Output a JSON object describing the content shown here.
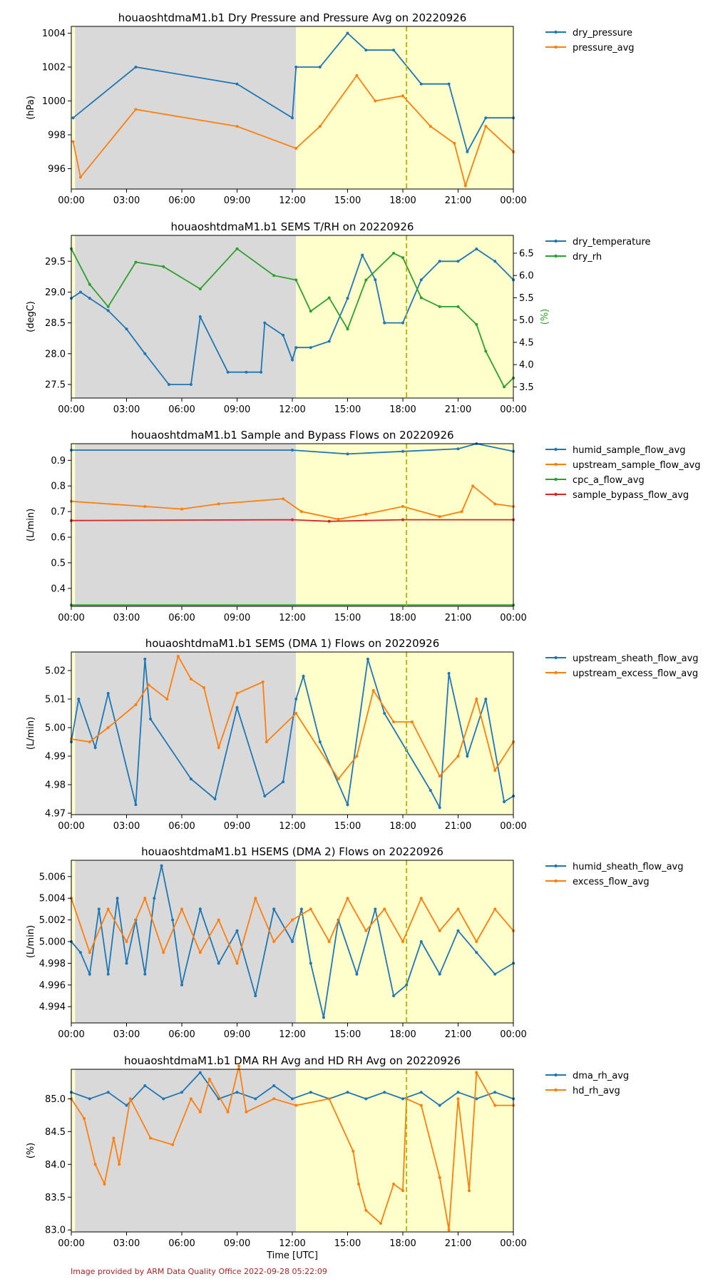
{
  "footer": "Image provided by ARM Data Quality Office 2022-09-28 05:22:09",
  "xaxis": {
    "ticks": [
      0,
      3,
      6,
      9,
      12,
      15,
      18,
      21,
      24
    ],
    "tick_labels": [
      "00:00",
      "03:00",
      "06:00",
      "09:00",
      "12:00",
      "15:00",
      "18:00",
      "21:00",
      "00:00"
    ],
    "range": [
      0,
      24
    ],
    "label": "Time [UTC]"
  },
  "colors": {
    "blue": "#1f77b4",
    "orange": "#ff7f0e",
    "green": "#2ca02c",
    "red": "#d62728",
    "night": "#d9d9d9",
    "day": "#ffffcc",
    "marker_line": "#b5b500",
    "footer": "#b22222"
  },
  "shading": {
    "night": [
      0.2,
      12.2
    ],
    "day": [
      12.2,
      24
    ],
    "edge_day": [
      0,
      0.2
    ],
    "dashed_line_hour": 18.2
  },
  "chart_data": [
    {
      "type": "line",
      "title": "houaoshtdmaM1.b1 Dry Pressure and Pressure Avg on 20220926",
      "ylabel": "(hPa)",
      "ylim": [
        994.8,
        1004.4
      ],
      "yticks": [
        996,
        998,
        1000,
        1002,
        1004
      ],
      "yticklabels": [
        "996",
        "998",
        "1000",
        "1002",
        "1004"
      ],
      "legend": "right-outside",
      "series": [
        {
          "name": "dry_pressure",
          "color": "#1f77b4",
          "x": [
            0.1,
            3.5,
            9.0,
            12.0,
            12.2,
            13.5,
            15.0,
            16.0,
            17.5,
            19.0,
            20.5,
            21.5,
            22.5,
            24.0
          ],
          "y": [
            999,
            1002,
            1001,
            999,
            1002,
            1002,
            1004,
            1003,
            1003,
            1001,
            1001,
            997,
            999,
            999
          ]
        },
        {
          "name": "pressure_avg",
          "color": "#ff7f0e",
          "x": [
            0.1,
            0.5,
            3.5,
            9.0,
            12.2,
            13.5,
            15.5,
            16.5,
            18.0,
            19.5,
            20.8,
            21.4,
            22.5,
            24.0
          ],
          "y": [
            997.6,
            995.5,
            999.5,
            998.5,
            997.2,
            998.5,
            1001.5,
            1000,
            1000.3,
            998.5,
            997.5,
            995,
            998.5,
            997
          ]
        }
      ]
    },
    {
      "type": "line",
      "title": "houaoshtdmaM1.b1 SEMS T/RH on 20220926",
      "ylabel": "(degC)",
      "ylabel_right": "(%)",
      "ylim": [
        27.28,
        29.92
      ],
      "yticks": [
        27.5,
        28.0,
        28.5,
        29.0,
        29.5
      ],
      "yticklabels": [
        "27.5",
        "28.0",
        "28.5",
        "29.0",
        "29.5"
      ],
      "ylim_right": [
        3.25,
        6.9
      ],
      "yticks_right": [
        3.5,
        4.0,
        4.5,
        5.0,
        5.5,
        6.0,
        6.5
      ],
      "yticklabels_right": [
        "3.5",
        "4.0",
        "4.5",
        "5.0",
        "5.5",
        "6.0",
        "6.5"
      ],
      "legend": "right-outside",
      "series": [
        {
          "name": "dry_temperature",
          "color": "#1f77b4",
          "axis": "left",
          "x": [
            0.0,
            0.5,
            1.0,
            2.0,
            3.0,
            4.0,
            5.3,
            6.5,
            7.0,
            8.5,
            9.5,
            10.3,
            10.5,
            11.5,
            12.0,
            12.2,
            13.0,
            14.0,
            15.0,
            15.8,
            16.5,
            17.0,
            18.0,
            19.0,
            20.0,
            21.0,
            22.0,
            23.0,
            24.0
          ],
          "y": [
            28.9,
            29.0,
            28.9,
            28.7,
            28.4,
            28.0,
            27.5,
            27.5,
            28.6,
            27.7,
            27.7,
            27.7,
            28.5,
            28.3,
            27.9,
            28.1,
            28.1,
            28.2,
            28.9,
            29.6,
            29.2,
            28.5,
            28.5,
            29.2,
            29.5,
            29.5,
            29.7,
            29.5,
            29.2
          ]
        },
        {
          "name": "dry_rh",
          "color": "#2ca02c",
          "axis": "right",
          "x": [
            0.0,
            1.0,
            2.0,
            3.5,
            5.0,
            7.0,
            9.0,
            11.0,
            12.2,
            13.0,
            14.0,
            15.0,
            16.0,
            17.5,
            18.0,
            19.0,
            20.0,
            21.0,
            22.0,
            22.5,
            23.5,
            24.0
          ],
          "y": [
            6.6,
            5.8,
            5.3,
            6.3,
            6.2,
            5.7,
            6.6,
            6.0,
            5.9,
            5.2,
            5.5,
            4.8,
            5.9,
            6.5,
            6.4,
            5.5,
            5.3,
            5.3,
            4.9,
            4.3,
            3.5,
            3.7
          ]
        }
      ]
    },
    {
      "type": "line",
      "title": "houaoshtdmaM1.b1 Sample and Bypass Flows on 20220926",
      "ylabel": "(L/min)",
      "ylim": [
        0.33,
        0.965
      ],
      "yticks": [
        0.4,
        0.5,
        0.6,
        0.7,
        0.8,
        0.9
      ],
      "yticklabels": [
        "0.4",
        "0.5",
        "0.6",
        "0.7",
        "0.8",
        "0.9"
      ],
      "legend": "right-outside",
      "series": [
        {
          "name": "humid_sample_flow_avg",
          "color": "#1f77b4",
          "x": [
            0,
            12,
            15,
            18,
            21,
            22,
            24
          ],
          "y": [
            0.94,
            0.94,
            0.925,
            0.935,
            0.945,
            0.965,
            0.935
          ]
        },
        {
          "name": "upstream_sample_flow_avg",
          "color": "#ff7f0e",
          "x": [
            0,
            4,
            6,
            8,
            11.5,
            12.5,
            14.5,
            16,
            18,
            20,
            21.2,
            21.8,
            23,
            24
          ],
          "y": [
            0.74,
            0.72,
            0.71,
            0.73,
            0.75,
            0.7,
            0.67,
            0.69,
            0.72,
            0.68,
            0.7,
            0.8,
            0.73,
            0.72
          ]
        },
        {
          "name": "cpc_a_flow_avg",
          "color": "#2ca02c",
          "x": [
            0,
            24
          ],
          "y": [
            0.335,
            0.335
          ]
        },
        {
          "name": "sample_bypass_flow_avg",
          "color": "#d62728",
          "x": [
            0,
            12,
            14,
            18,
            24
          ],
          "y": [
            0.665,
            0.668,
            0.662,
            0.668,
            0.668
          ]
        }
      ]
    },
    {
      "type": "line",
      "title": "houaoshtdmaM1.b1 SEMS (DMA 1) Flows on 20220926",
      "ylabel": "(L/min)",
      "ylim": [
        4.9695,
        5.0265
      ],
      "yticks": [
        4.97,
        4.98,
        4.99,
        5.0,
        5.01,
        5.02
      ],
      "yticklabels": [
        "4.97",
        "4.98",
        "4.99",
        "5.00",
        "5.01",
        "5.02"
      ],
      "legend": "right-outside",
      "series": [
        {
          "name": "upstream_sheath_flow_avg",
          "color": "#1f77b4",
          "x": [
            0.0,
            0.4,
            1.3,
            2.0,
            3.5,
            4.0,
            4.3,
            6.5,
            7.8,
            9.0,
            10.5,
            11.5,
            12.2,
            12.6,
            13.5,
            15.0,
            16.1,
            17.0,
            18.2,
            19.5,
            20.0,
            20.5,
            21.5,
            22.5,
            23.5,
            24.0
          ],
          "y": [
            4.995,
            5.01,
            4.993,
            5.012,
            4.973,
            5.024,
            5.003,
            4.982,
            4.975,
            5.007,
            4.976,
            4.981,
            5.01,
            5.018,
            4.995,
            4.973,
            5.024,
            5.005,
            4.992,
            4.978,
            4.972,
            5.019,
            4.99,
            5.01,
            4.974,
            4.976
          ]
        },
        {
          "name": "upstream_excess_flow_avg",
          "color": "#ff7f0e",
          "x": [
            0.0,
            1.0,
            2.0,
            3.5,
            4.2,
            5.2,
            5.8,
            6.5,
            7.2,
            8.0,
            9.0,
            10.4,
            10.6,
            12.2,
            14.5,
            15.5,
            16.4,
            17.5,
            18.5,
            20.0,
            21.0,
            22.0,
            23.0,
            24.0
          ],
          "y": [
            4.996,
            4.995,
            5.0,
            5.008,
            5.015,
            5.01,
            5.025,
            5.017,
            5.014,
            4.993,
            5.012,
            5.016,
            4.995,
            5.005,
            4.982,
            4.99,
            5.013,
            5.002,
            5.002,
            4.983,
            4.99,
            5.01,
            4.985,
            4.995
          ]
        }
      ]
    },
    {
      "type": "line",
      "title": "houaoshtdmaM1.b1 HSEMS (DMA 2) Flows on 20220926",
      "ylabel": "(L/min)",
      "ylim": [
        4.9925,
        5.0075
      ],
      "yticks": [
        4.994,
        4.996,
        4.998,
        5.0,
        5.002,
        5.004,
        5.006
      ],
      "yticklabels": [
        "4.994",
        "4.996",
        "4.998",
        "5.000",
        "5.002",
        "5.004",
        "5.006"
      ],
      "legend": "right-outside",
      "series": [
        {
          "name": "humid_sheath_flow_avg",
          "color": "#1f77b4",
          "x": [
            0.0,
            0.5,
            1.0,
            1.5,
            2.0,
            2.5,
            3.0,
            3.5,
            4.0,
            4.5,
            4.9,
            5.5,
            6.0,
            7.0,
            8.0,
            9.0,
            10.0,
            11.0,
            12.0,
            12.5,
            13.0,
            13.7,
            14.5,
            15.5,
            16.5,
            17.5,
            18.2,
            19.0,
            20.0,
            21.0,
            22.0,
            23.0,
            24.0
          ],
          "y": [
            5.0,
            4.999,
            4.997,
            5.003,
            4.997,
            5.004,
            4.998,
            5.002,
            4.997,
            5.004,
            5.007,
            5.002,
            4.996,
            5.003,
            4.998,
            5.001,
            4.995,
            5.003,
            5.0,
            5.003,
            4.998,
            4.993,
            5.002,
            4.997,
            5.003,
            4.995,
            4.996,
            5.0,
            4.997,
            5.001,
            4.999,
            4.997,
            4.998
          ]
        },
        {
          "name": "excess_flow_avg",
          "color": "#ff7f0e",
          "x": [
            0.0,
            1.0,
            2.0,
            3.0,
            4.0,
            5.0,
            6.0,
            7.0,
            8.0,
            9.0,
            10.0,
            11.0,
            12.0,
            13.0,
            14.0,
            15.0,
            16.0,
            17.0,
            18.0,
            19.0,
            20.0,
            21.0,
            22.0,
            23.0,
            24.0
          ],
          "y": [
            5.004,
            4.999,
            5.003,
            5.0,
            5.004,
            4.999,
            5.003,
            4.999,
            5.002,
            4.998,
            5.004,
            5.0,
            5.002,
            5.003,
            5.0,
            5.004,
            5.001,
            5.003,
            5.0,
            5.004,
            5.001,
            5.003,
            5.0,
            5.003,
            5.001
          ]
        }
      ]
    },
    {
      "type": "line",
      "title": "houaoshtdmaM1.b1 DMA RH Avg and HD RH Avg on 20220926",
      "ylabel": "(%)",
      "xlabel": "Time [UTC]",
      "ylim": [
        82.97,
        85.45
      ],
      "yticks": [
        83.0,
        83.5,
        84.0,
        84.5,
        85.0
      ],
      "yticklabels": [
        "83.0",
        "83.5",
        "84.0",
        "84.5",
        "85.0"
      ],
      "legend": "right-outside",
      "series": [
        {
          "name": "dma_rh_avg",
          "color": "#1f77b4",
          "x": [
            0.0,
            1.0,
            2.0,
            3.0,
            4.0,
            5.0,
            6.0,
            7.0,
            8.0,
            9.0,
            10.0,
            11.0,
            12.0,
            13.0,
            14.0,
            15.0,
            16.0,
            17.0,
            18.0,
            19.0,
            20.0,
            21.0,
            22.0,
            23.0,
            24.0
          ],
          "y": [
            85.1,
            85.0,
            85.1,
            84.9,
            85.2,
            85.0,
            85.1,
            85.4,
            85.0,
            85.1,
            85.0,
            85.2,
            85.0,
            85.1,
            85.0,
            85.1,
            85.0,
            85.1,
            85.0,
            85.1,
            84.9,
            85.1,
            85.0,
            85.1,
            85.0
          ]
        },
        {
          "name": "hd_rh_avg",
          "color": "#ff7f0e",
          "x": [
            0.0,
            0.7,
            1.3,
            1.8,
            2.3,
            2.6,
            3.2,
            4.3,
            5.5,
            6.5,
            7.0,
            7.5,
            8.5,
            9.1,
            9.5,
            11.0,
            12.2,
            14.0,
            15.3,
            15.6,
            16.0,
            16.8,
            17.5,
            18.0,
            18.2,
            19.0,
            20.0,
            20.5,
            21.0,
            21.6,
            22.0,
            23.0,
            24.0
          ],
          "y": [
            85.0,
            84.7,
            84.0,
            83.7,
            84.4,
            84.0,
            85.0,
            84.4,
            84.3,
            85.0,
            84.8,
            85.3,
            84.8,
            85.5,
            84.8,
            85.0,
            84.9,
            85.0,
            84.2,
            83.7,
            83.3,
            83.1,
            83.7,
            83.6,
            85.0,
            84.9,
            83.8,
            83.0,
            85.0,
            83.6,
            85.4,
            84.9,
            84.9
          ]
        }
      ]
    }
  ]
}
